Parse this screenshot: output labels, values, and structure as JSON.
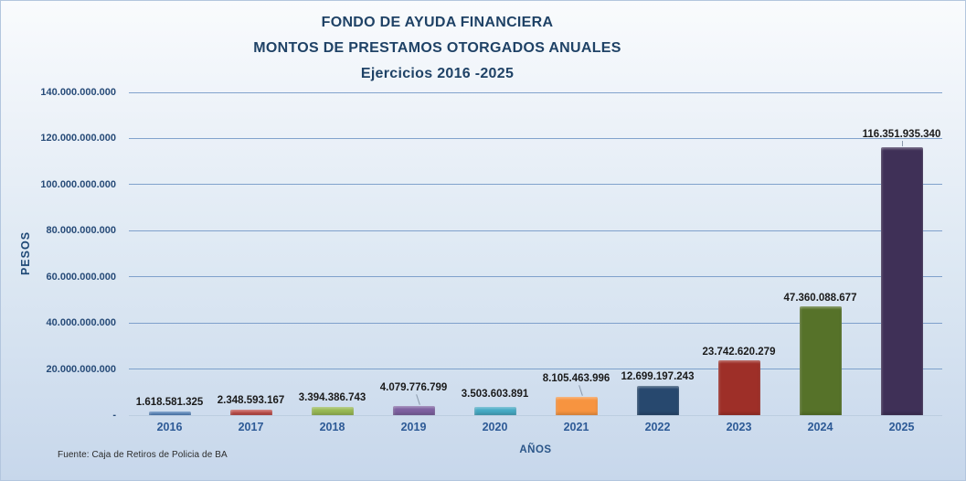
{
  "colors": {
    "background_top": "#f9fbfd",
    "background_bottom": "#c7d7eb",
    "title_text": "#1f4266",
    "axis_label_text": "#2d5a96",
    "tick_label_text": "#274b78",
    "gridline": "#6f94c4",
    "data_label_text": "#1a1a1a"
  },
  "chart_data": {
    "type": "bar",
    "title_lines": [
      "FONDO DE AYUDA FINANCIERA",
      "MONTOS DE PRESTAMOS OTORGADOS ANUALES",
      "Ejercicios 2016 -2025"
    ],
    "ylabel": "PESOS",
    "xlabel": "AÑOS",
    "source": "Fuente: Caja de Retiros de Policia de BA",
    "ylim": [
      0,
      140000000000
    ],
    "grid": true,
    "legend": "none",
    "y_ticks": [
      {
        "value": 140000000000,
        "label": "140.000.000.000"
      },
      {
        "value": 120000000000,
        "label": "120.000.000.000"
      },
      {
        "value": 100000000000,
        "label": "100.000.000.000"
      },
      {
        "value": 80000000000,
        "label": "80.000.000.000"
      },
      {
        "value": 60000000000,
        "label": "60.000.000.000"
      },
      {
        "value": 40000000000,
        "label": "40.000.000.000"
      },
      {
        "value": 20000000000,
        "label": "20.000.000.000"
      },
      {
        "value": 0,
        "label": "-"
      }
    ],
    "categories": [
      "2016",
      "2017",
      "2018",
      "2019",
      "2020",
      "2021",
      "2022",
      "2023",
      "2024",
      "2025"
    ],
    "values": [
      1618581325,
      2348593167,
      3394386743,
      4079776799,
      3503603891,
      8105463996,
      12699197243,
      23742620279,
      47360088677,
      116351935340
    ],
    "value_labels": [
      "1.618.581.325",
      "2.348.593.167",
      "3.394.386.743",
      "4.079.776.799",
      "3.503.603.891",
      "8.105.463.996",
      "12.699.197.243",
      "23.742.620.279",
      "47.360.088.677",
      "116.351.935.340"
    ],
    "bar_colors": [
      "#4d7ebb",
      "#be4b48",
      "#98b954",
      "#7d60a0",
      "#45a9c4",
      "#f79440",
      "#27486e",
      "#9e2f28",
      "#567229",
      "#3f3057"
    ]
  }
}
